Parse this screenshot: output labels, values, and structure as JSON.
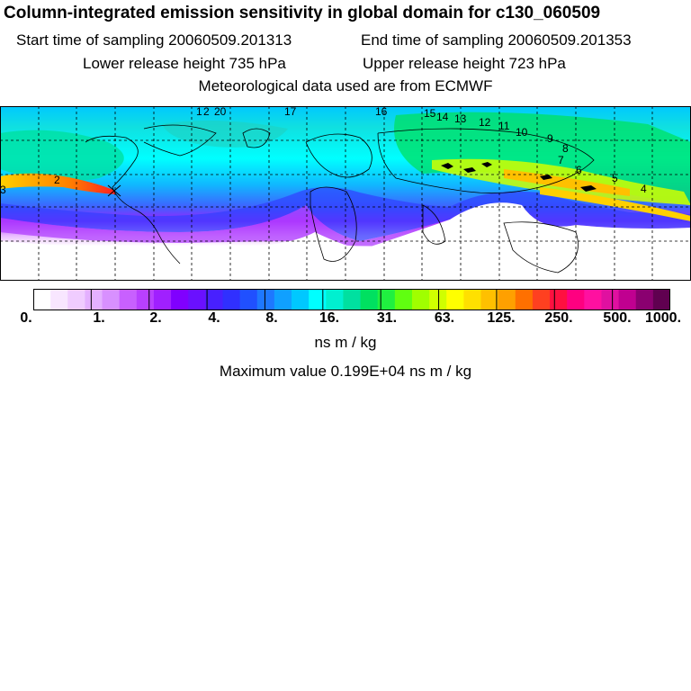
{
  "header": {
    "title": "Column-integrated emission sensitivity in global domain for c130_060509",
    "start_time": "Start time of sampling 20060509.201313",
    "end_time": "End time of sampling 20060509.201353",
    "lower_height": "Lower release height  735 hPa",
    "upper_height": "Upper release height  723 hPa",
    "met_data": "Meteorological data used are from ECMWF"
  },
  "map": {
    "trajectory_labels": [
      "3",
      "2",
      "1",
      "2",
      "20",
      "17",
      "16",
      "15",
      "14",
      "13",
      "12",
      "11",
      "10",
      "9",
      "8",
      "7",
      "6",
      "5",
      "4"
    ],
    "colors": {
      "ocean_low": "#00ffff",
      "mid": "#00e060",
      "high": "#ffd700",
      "peak": "#ff3030",
      "low_band": "#a000ff",
      "fringe": "#f0c8ff"
    }
  },
  "colorbar": {
    "colors": [
      "#ffffff",
      "#f8e6ff",
      "#f0ccff",
      "#e4b0ff",
      "#d890ff",
      "#c860ff",
      "#b840ff",
      "#a020ff",
      "#8000ff",
      "#6a10ff",
      "#4820ff",
      "#3030ff",
      "#2050ff",
      "#1e78ff",
      "#10a0ff",
      "#00c8ff",
      "#00ffff",
      "#00f0d0",
      "#00e0a0",
      "#00e060",
      "#20f040",
      "#60ff10",
      "#a0ff00",
      "#d0ff00",
      "#ffff00",
      "#ffe000",
      "#ffc000",
      "#ffa000",
      "#ff7000",
      "#ff4020",
      "#ff1040",
      "#ff0080",
      "#ff10a0",
      "#e010a0",
      "#c00090",
      "#8a0070",
      "#600050"
    ],
    "ticks": [
      "0.",
      "1.",
      "2.",
      "4.",
      "8.",
      "16.",
      "31.",
      "63.",
      "125.",
      "250.",
      "500.",
      "1000."
    ],
    "units": "ns m / kg",
    "max_value": "Maximum value  0.199E+04 ns m / kg"
  }
}
